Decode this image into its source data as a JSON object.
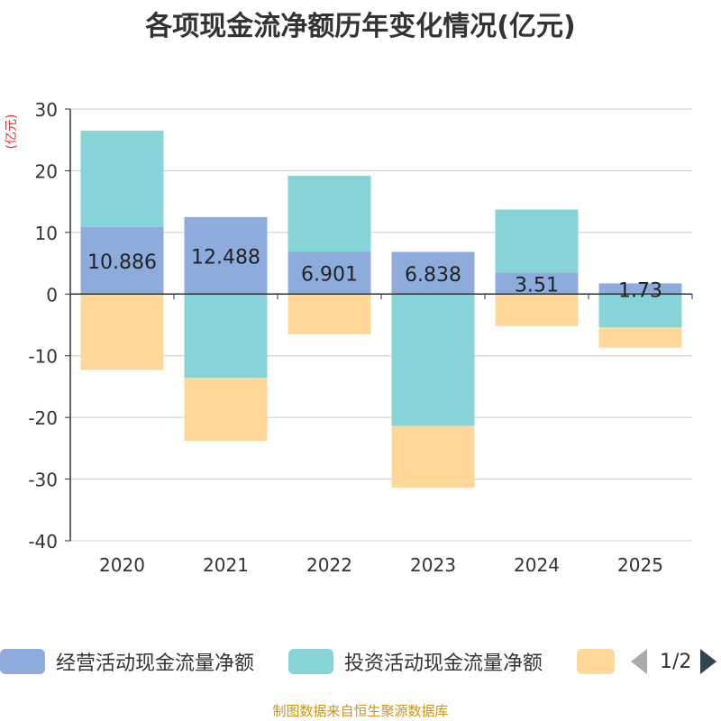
{
  "title": "各项现金流净额历年变化情况(亿元)",
  "footer": "制图数据来自恒生聚源数据库",
  "legend": {
    "page": "1/2",
    "items": [
      {
        "label": "经营活动现金流量净额",
        "color": "#8eacdb"
      },
      {
        "label": "投资活动现金流量净额",
        "color": "#86d4d7"
      },
      {
        "label": "",
        "color": "#ffd899"
      }
    ]
  },
  "chart_data": {
    "type": "bar",
    "stacked": true,
    "title": "各项现金流净额历年变化情况(亿元)",
    "ylabel": "(亿元)",
    "xlabel": "",
    "categories": [
      "2020",
      "2021",
      "2022",
      "2023",
      "2024",
      "2025"
    ],
    "ylim": [
      -40,
      30
    ],
    "yticks": [
      30,
      20,
      10,
      0,
      -10,
      -20,
      -30,
      -40
    ],
    "grid": true,
    "legend_position": "bottom",
    "series": [
      {
        "name": "经营活动现金流量净额",
        "color": "#8eacdb",
        "values": [
          10.886,
          12.488,
          6.901,
          6.838,
          3.51,
          1.73
        ],
        "labels": [
          "10.886",
          "12.488",
          "6.901",
          "6.838",
          "3.51",
          "1.73"
        ]
      },
      {
        "name": "投资活动现金流量净额",
        "color": "#86d4d7",
        "values": [
          15.6,
          -13.6,
          12.3,
          -21.4,
          10.2,
          -5.4
        ]
      },
      {
        "name": "",
        "color": "#ffd899",
        "values": [
          -12.3,
          -10.2,
          -6.5,
          -10.0,
          -5.2,
          -3.3
        ]
      }
    ]
  }
}
